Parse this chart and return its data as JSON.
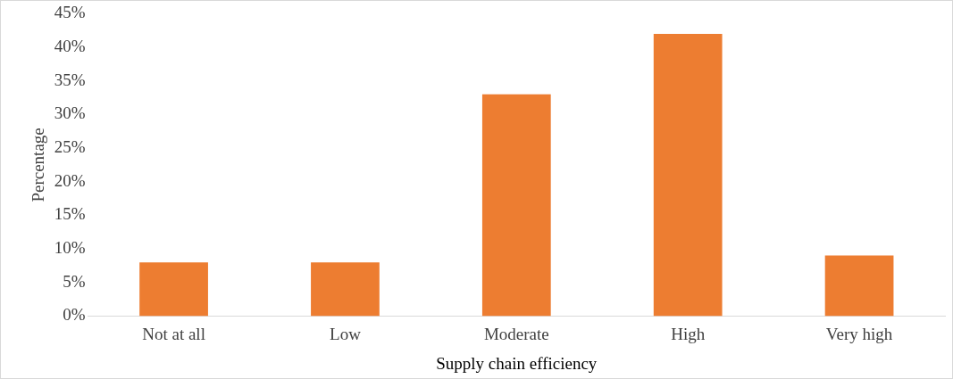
{
  "chart_data": {
    "type": "bar",
    "xlabel": "Supply chain efficiency",
    "ylabel": "Percentage",
    "categories": [
      "Not at all",
      "Low",
      "Moderate",
      "High",
      "Very high"
    ],
    "values": [
      8,
      8,
      33,
      42,
      9
    ],
    "color": "#ed7d31",
    "ylim": [
      0,
      45
    ],
    "yticks": [
      {
        "value": 0,
        "label": "0%"
      },
      {
        "value": 5,
        "label": "5%"
      },
      {
        "value": 10,
        "label": "10%"
      },
      {
        "value": 15,
        "label": "15%"
      },
      {
        "value": 20,
        "label": "20%"
      },
      {
        "value": 25,
        "label": "25%"
      },
      {
        "value": 30,
        "label": "30%"
      },
      {
        "value": 35,
        "label": "35%"
      },
      {
        "value": 40,
        "label": "40%"
      },
      {
        "value": 45,
        "label": "45%"
      }
    ],
    "grid": false,
    "legend": false
  }
}
